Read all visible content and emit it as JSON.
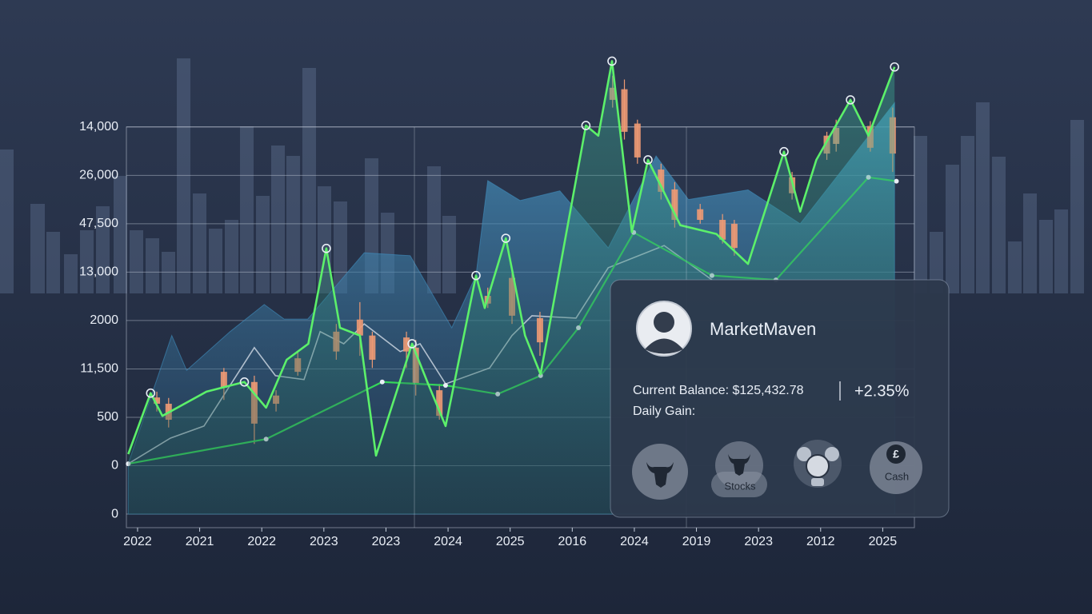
{
  "chart_data": {
    "type": "combo",
    "categories": [
      "2022",
      "2021",
      "2022",
      "2023",
      "2023",
      "2024",
      "2025",
      "2016",
      "2024",
      "2019",
      "2023",
      "2012",
      "2025"
    ],
    "y_categories": [
      "0",
      "0",
      "500",
      "11,500",
      "2000",
      "13,000",
      "47,500",
      "26,000",
      "14,000"
    ],
    "xlim": [
      -0.18,
      12.51
    ],
    "ylim": [
      -0.28,
      9.5
    ],
    "grid": true,
    "series": [
      {
        "kind": "area",
        "color": "#3f8fbf",
        "x": [
          -0.15,
          0.55,
          0.79,
          1.49,
          2.04,
          2.36,
          2.74,
          3.65,
          4.39,
          5.06,
          5.45,
          5.64,
          6.16,
          6.8,
          7.58,
          8.35,
          8.87,
          9.83,
          10.67,
          12.19
        ],
        "y": [
          1.04,
          3.69,
          2.97,
          3.77,
          4.33,
          4.03,
          4.03,
          5.4,
          5.34,
          3.85,
          4.93,
          6.89,
          6.48,
          6.68,
          5.5,
          7.4,
          6.5,
          6.7,
          6.0,
          8.5
        ]
      },
      {
        "kind": "line",
        "color": "#c9d3df",
        "x": [
          -0.15,
          0.53,
          1.07,
          1.88,
          2.22,
          2.68,
          2.94,
          3.32,
          3.65,
          4.23,
          4.55,
          4.96,
          5.67,
          6.03,
          6.35,
          7.06,
          7.58,
          8.48,
          9.25
        ],
        "y": [
          1.04,
          1.57,
          1.82,
          3.44,
          2.86,
          2.78,
          3.77,
          3.52,
          3.93,
          3.36,
          3.52,
          2.69,
          3.02,
          3.69,
          4.1,
          4.05,
          5.09,
          5.55,
          4.84
        ]
      },
      {
        "kind": "candlestick",
        "color": "#ee9a74",
        "x": [
          0.31,
          0.5,
          1.39,
          1.88,
          2.23,
          2.58,
          3.2,
          3.58,
          3.78,
          4.33,
          4.48,
          4.86,
          5.64,
          6.03,
          6.48,
          7.65,
          7.84,
          8.05,
          8.43,
          8.65,
          9.06,
          9.42,
          9.61,
          10.54,
          11.1,
          11.25,
          11.8,
          12.16
        ],
        "open": [
          2.28,
          1.95,
          2.61,
          1.87,
          2.28,
          2.94,
          3.36,
          3.69,
          3.19,
          3.36,
          2.69,
          2.03,
          4.35,
          4.1,
          3.55,
          8.56,
          7.9,
          7.37,
          6.66,
          6.08,
          6.08,
          5.67,
          5.5,
          6.63,
          7.45,
          7.65,
          7.57,
          7.45
        ],
        "close": [
          2.41,
          2.28,
          2.94,
          2.73,
          2.45,
          3.22,
          3.77,
          4.02,
          3.69,
          3.65,
          3.44,
          2.56,
          4.51,
          4.88,
          4.05,
          8.81,
          8.78,
          8.07,
          7.12,
          6.71,
          6.3,
          6.08,
          6.0,
          6.96,
          7.82,
          7.98,
          8.02,
          8.2
        ],
        "high": [
          2.53,
          2.4,
          3.02,
          2.86,
          2.56,
          3.36,
          3.93,
          4.38,
          3.77,
          3.77,
          3.6,
          2.69,
          4.68,
          5.01,
          4.18,
          9.06,
          8.98,
          8.15,
          7.24,
          6.86,
          6.41,
          6.2,
          6.08,
          7.07,
          7.9,
          8.15,
          8.12,
          8.4
        ],
        "low": [
          2.12,
          1.79,
          2.36,
          1.45,
          2.12,
          2.86,
          3.19,
          3.27,
          3.02,
          3.02,
          2.45,
          1.95,
          4.26,
          3.93,
          3.27,
          8.4,
          7.74,
          7.24,
          6.5,
          5.92,
          6.0,
          5.59,
          5.34,
          6.5,
          7.32,
          7.49,
          7.49,
          7.07
        ]
      },
      {
        "kind": "dots-line",
        "color": "#35d65a",
        "x": [
          -0.15,
          2.07,
          3.94,
          4.96,
          5.8,
          6.49,
          7.1,
          7.99,
          9.25,
          10.28,
          11.77,
          12.22
        ],
        "y": [
          1.04,
          1.55,
          2.73,
          2.66,
          2.48,
          2.86,
          3.85,
          5.82,
          4.93,
          4.84,
          6.96,
          6.88
        ]
      },
      {
        "kind": "peak-line",
        "color": "#5cf06a",
        "x": [
          -0.15,
          0.21,
          0.4,
          1.11,
          1.72,
          2.07,
          2.4,
          2.75,
          3.04,
          3.26,
          3.58,
          3.84,
          4.42,
          4.68,
          4.96,
          5.45,
          5.59,
          5.93,
          6.24,
          6.49,
          7.22,
          7.42,
          7.64,
          7.96,
          8.22,
          8.74,
          9.32,
          9.83,
          10.41,
          10.67,
          10.93,
          11.48,
          11.77,
          12.19
        ],
        "y": [
          1.24,
          2.5,
          2.03,
          2.53,
          2.73,
          2.2,
          3.19,
          3.52,
          5.49,
          3.85,
          3.69,
          1.21,
          3.52,
          2.69,
          1.82,
          4.93,
          4.26,
          5.7,
          3.69,
          2.89,
          8.03,
          7.82,
          9.36,
          5.83,
          7.32,
          5.97,
          5.79,
          5.17,
          7.49,
          6.25,
          7.32,
          8.56,
          7.82,
          9.24
        ]
      }
    ]
  },
  "card": {
    "username": "MarketMaven",
    "balance_label": "Current Balance: $125,432.78",
    "gain_label": "Daily Gain:",
    "gain_value": "+2.35%",
    "actions": [
      {
        "label": "Stocks"
      },
      {
        "symbol": "£",
        "label": "Cash"
      }
    ]
  }
}
